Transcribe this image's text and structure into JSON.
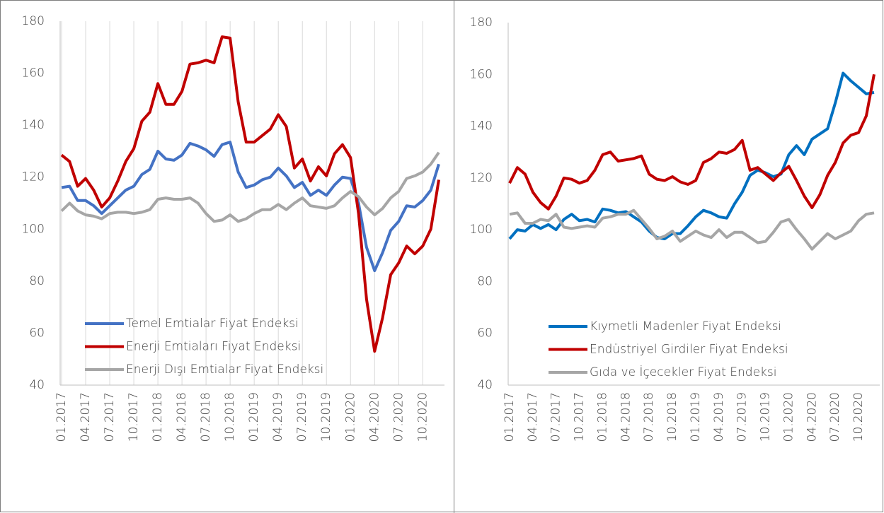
{
  "chart_data": [
    {
      "type": "line",
      "categories": [
        "01.2017",
        null,
        null,
        "04.2017",
        null,
        null,
        "07.2017",
        null,
        null,
        "10.2017",
        null,
        null,
        "01.2018",
        null,
        null,
        "04.2018",
        null,
        null,
        "07.2018",
        null,
        null,
        "10.2018",
        null,
        null,
        "01.2019",
        null,
        null,
        "04.2019",
        null,
        null,
        "07.2019",
        null,
        null,
        "10.2019",
        null,
        null,
        "01.2020",
        null,
        null,
        "04.2020",
        null,
        null,
        "07.2020",
        null,
        null,
        "10.2020",
        null,
        null
      ],
      "series": [
        {
          "name": "Temel Emtialar Fiyat Endeksi",
          "color": "#4472c4",
          "values": [
            116,
            116.5,
            111,
            111,
            109,
            106,
            109,
            112,
            115,
            116.5,
            121,
            123,
            130,
            127,
            126.5,
            128.5,
            133,
            132,
            130.5,
            128,
            132.5,
            133.5,
            122,
            116,
            117,
            119,
            120,
            123.5,
            120.5,
            116,
            118,
            113,
            115,
            113,
            117,
            120,
            119.5,
            110,
            93,
            84,
            91,
            99.5,
            103,
            109,
            108.5,
            111,
            115,
            125
          ]
        },
        {
          "name": "Enerji Emtiaları Fiyat Endeksi",
          "color": "#c00000",
          "values": [
            128.5,
            126,
            116.5,
            119.5,
            115,
            108.5,
            112,
            118.5,
            126,
            131,
            141.5,
            145,
            156,
            148,
            148,
            153,
            163.5,
            164,
            165,
            164,
            174,
            173.5,
            149,
            133.5,
            133.5,
            136,
            138.5,
            144,
            139.5,
            123.5,
            127,
            118.5,
            124,
            120.5,
            129,
            132.5,
            127.5,
            106,
            73,
            53,
            66,
            82.5,
            87,
            93.5,
            90.5,
            93.5,
            100,
            119
          ]
        },
        {
          "name": "Enerji Dışı Emtialar Fiyat Endeksi",
          "color": "#a6a6a6",
          "values": [
            107,
            110,
            107,
            105.5,
            105,
            104,
            106,
            106.5,
            106.5,
            106,
            106.5,
            107.5,
            111.5,
            112,
            111.5,
            111.5,
            112,
            110,
            106,
            103,
            103.5,
            105.5,
            103,
            104,
            106,
            107.5,
            107.5,
            109.5,
            107.5,
            110,
            112,
            109,
            108.5,
            108,
            109,
            112,
            114.5,
            112.5,
            108.5,
            105.5,
            108,
            112,
            114.5,
            119.5,
            120.5,
            122,
            125,
            129.5
          ]
        }
      ],
      "ylim": [
        40,
        180
      ],
      "yticks": [
        40,
        60,
        80,
        100,
        120,
        140,
        160,
        180
      ],
      "grid": true,
      "legend": "lower left"
    },
    {
      "type": "line",
      "categories": [
        "01.2017",
        null,
        null,
        "04.2017",
        null,
        null,
        "07.2017",
        null,
        null,
        "10.2017",
        null,
        null,
        "01.2018",
        null,
        null,
        "04.2018",
        null,
        null,
        "07.2018",
        null,
        null,
        "10.2018",
        null,
        null,
        "01.2019",
        null,
        null,
        "04.2019",
        null,
        null,
        "07.2019",
        null,
        null,
        "10.2019",
        null,
        null,
        "01.2020",
        null,
        null,
        "04.2020",
        null,
        null,
        "07.2020",
        null,
        null,
        "10.2020",
        null,
        null
      ],
      "series": [
        {
          "name": "Kıymetli Madenler Fiyat Endeksi",
          "color": "#0070c0",
          "values": [
            96.5,
            100,
            99.5,
            102,
            100.5,
            102,
            100,
            104,
            106,
            103.5,
            104,
            103,
            108,
            107.5,
            106.5,
            107,
            105,
            103,
            99.5,
            97,
            96.5,
            98.5,
            98.5,
            101.5,
            105,
            107.5,
            106.5,
            105,
            104.5,
            110,
            114.5,
            121,
            123,
            122,
            120.5,
            121.5,
            129,
            132.5,
            129,
            135,
            137,
            139,
            149,
            160.5,
            157.5,
            155,
            152.5,
            153
          ]
        },
        {
          "name": "Endüstriyel Girdiler Fiyat Endeksi",
          "color": "#c00000",
          "values": [
            118,
            124,
            121.5,
            114.5,
            110.5,
            108,
            113,
            120,
            119.5,
            118,
            119,
            123,
            129,
            130,
            126.5,
            127,
            127.5,
            128.5,
            121.5,
            119.5,
            119,
            120.5,
            118.5,
            117.5,
            119,
            126,
            127.5,
            130,
            129.5,
            131,
            134.5,
            123,
            124,
            121.5,
            119,
            122,
            124.5,
            119,
            113,
            108.5,
            113.5,
            121,
            126,
            133.5,
            136.5,
            137.5,
            144,
            160
          ]
        },
        {
          "name": "Gıda ve İçecekler Fiyat Endeksi",
          "color": "#a6a6a6",
          "values": [
            106,
            106.5,
            102.5,
            102.5,
            104,
            103.5,
            106,
            101,
            100.5,
            101,
            101.5,
            101,
            104.5,
            105,
            106,
            106,
            107.5,
            104,
            100.5,
            96.5,
            97.5,
            99.5,
            95.5,
            97.5,
            99.5,
            98,
            97,
            100,
            97,
            99,
            99,
            97,
            95,
            95.5,
            99,
            103,
            104,
            100,
            96.5,
            92.5,
            95.5,
            98.5,
            96.5,
            98,
            99.5,
            103.5,
            106,
            106.5
          ]
        }
      ],
      "ylim": [
        40,
        180
      ],
      "yticks": [
        40,
        60,
        80,
        100,
        120,
        140,
        160,
        180
      ],
      "grid": false,
      "legend": "lower left"
    }
  ]
}
